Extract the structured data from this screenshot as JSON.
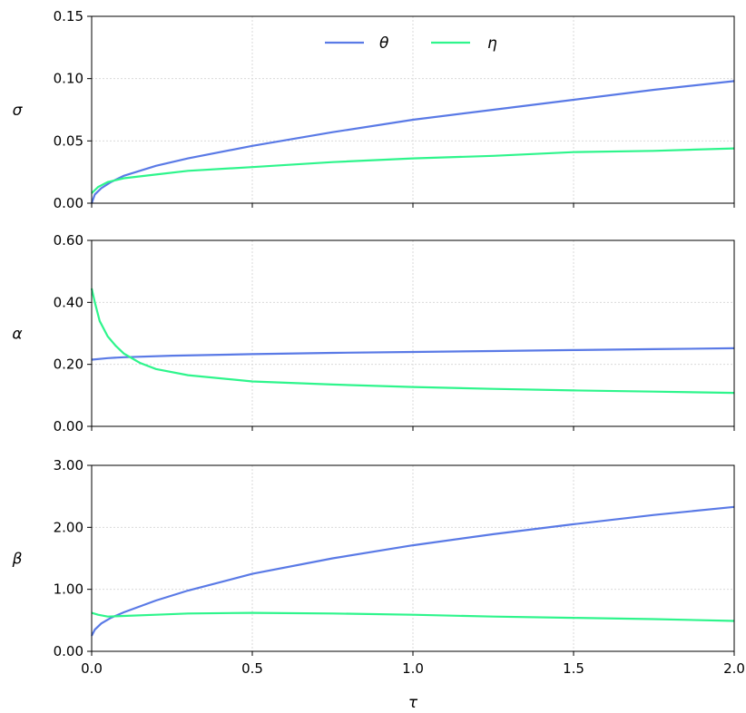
{
  "chart_data": {
    "type": "line",
    "colors": {
      "theta": "#5a7ae6",
      "eta": "#2ef58c"
    },
    "legend": {
      "placement": "top-center",
      "entries": [
        "θ",
        "η"
      ]
    },
    "grid": true,
    "x": {
      "label": "τ",
      "range": [
        0.0,
        2.0
      ],
      "ticks": [
        0.0,
        0.5,
        1.0,
        1.5,
        2.0
      ],
      "tick_labels": [
        "0.0",
        "0.5",
        "1.0",
        "1.5",
        "2.0"
      ]
    },
    "panels": [
      {
        "ylabel": "σ",
        "ylim": [
          0.0,
          0.15
        ],
        "yticks": [
          0.0,
          0.05,
          0.1,
          0.15
        ],
        "ytick_labels": [
          "0.00",
          "0.05",
          "0.10",
          "0.15"
        ],
        "series": [
          {
            "name": "θ",
            "color_key": "theta",
            "x": [
              0.0,
              0.01,
              0.03,
              0.06,
              0.1,
              0.2,
              0.3,
              0.5,
              0.75,
              1.0,
              1.25,
              1.5,
              1.75,
              2.0
            ],
            "y": [
              0.0,
              0.007,
              0.012,
              0.017,
              0.022,
              0.03,
              0.036,
              0.046,
              0.057,
              0.067,
              0.075,
              0.083,
              0.091,
              0.098
            ]
          },
          {
            "name": "η",
            "color_key": "eta",
            "x": [
              0.0,
              0.02,
              0.05,
              0.1,
              0.2,
              0.3,
              0.5,
              0.75,
              1.0,
              1.25,
              1.5,
              1.75,
              2.0
            ],
            "y": [
              0.008,
              0.013,
              0.017,
              0.02,
              0.023,
              0.026,
              0.029,
              0.033,
              0.036,
              0.038,
              0.041,
              0.042,
              0.044
            ]
          }
        ]
      },
      {
        "ylabel": "α",
        "ylim": [
          0.0,
          0.6
        ],
        "yticks": [
          0.0,
          0.2,
          0.4,
          0.6
        ],
        "ytick_labels": [
          "0.00",
          "0.20",
          "0.40",
          "0.60"
        ],
        "series": [
          {
            "name": "θ",
            "color_key": "theta",
            "x": [
              0.0,
              0.05,
              0.1,
              0.25,
              0.5,
              0.75,
              1.0,
              1.25,
              1.5,
              1.75,
              2.0
            ],
            "y": [
              0.215,
              0.22,
              0.223,
              0.228,
              0.233,
              0.237,
              0.24,
              0.243,
              0.246,
              0.249,
              0.252
            ]
          },
          {
            "name": "η",
            "color_key": "eta",
            "x": [
              0.0,
              0.01,
              0.025,
              0.05,
              0.075,
              0.1,
              0.15,
              0.2,
              0.3,
              0.5,
              0.75,
              1.0,
              1.25,
              1.5,
              1.75,
              2.0
            ],
            "y": [
              0.445,
              0.4,
              0.34,
              0.29,
              0.26,
              0.235,
              0.205,
              0.185,
              0.165,
              0.145,
              0.135,
              0.127,
              0.121,
              0.116,
              0.112,
              0.108
            ]
          }
        ]
      },
      {
        "ylabel": "β",
        "ylim": [
          0.0,
          3.0
        ],
        "yticks": [
          0.0,
          1.0,
          2.0,
          3.0
        ],
        "ytick_labels": [
          "0.00",
          "1.00",
          "2.00",
          "3.00"
        ],
        "series": [
          {
            "name": "θ",
            "color_key": "theta",
            "x": [
              0.0,
              0.01,
              0.03,
              0.06,
              0.1,
              0.2,
              0.3,
              0.5,
              0.75,
              1.0,
              1.25,
              1.5,
              1.75,
              2.0
            ],
            "y": [
              0.25,
              0.35,
              0.45,
              0.54,
              0.63,
              0.82,
              0.98,
              1.25,
              1.5,
              1.71,
              1.89,
              2.05,
              2.2,
              2.33
            ]
          },
          {
            "name": "η",
            "color_key": "eta",
            "x": [
              0.0,
              0.02,
              0.05,
              0.1,
              0.2,
              0.3,
              0.5,
              0.75,
              1.0,
              1.25,
              1.5,
              1.75,
              2.0
            ],
            "y": [
              0.62,
              0.59,
              0.56,
              0.57,
              0.59,
              0.61,
              0.62,
              0.61,
              0.59,
              0.56,
              0.54,
              0.52,
              0.49
            ]
          }
        ]
      }
    ]
  }
}
